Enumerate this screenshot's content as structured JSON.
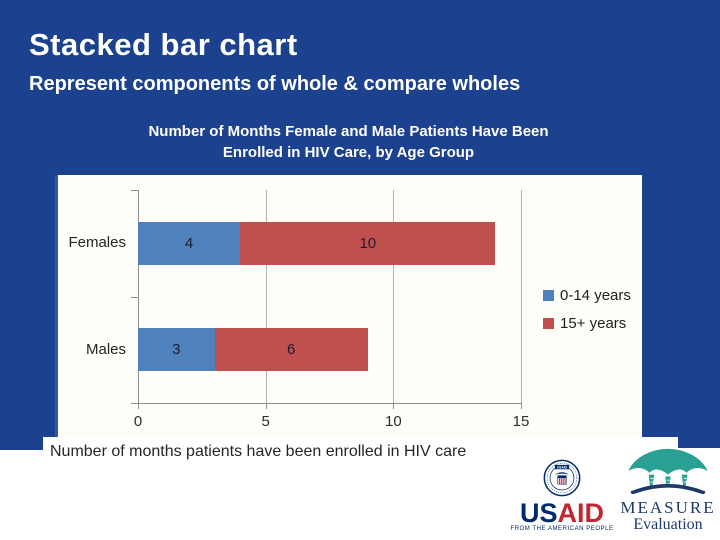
{
  "header": {
    "title": "Stacked bar chart",
    "subtitle": "Represent components of whole & compare wholes"
  },
  "chart_data": {
    "type": "bar",
    "orientation": "horizontal",
    "stacked": true,
    "title_lines": [
      "Number of Months Female and Male Patients Have Been",
      "Enrolled in HIV Care, by Age Group"
    ],
    "categories": [
      "Females",
      "Males"
    ],
    "series": [
      {
        "name": "0-14 years",
        "color": "#4f81bd",
        "values": [
          4,
          3
        ]
      },
      {
        "name": "15+ years",
        "color": "#c0504d",
        "values": [
          10,
          6
        ]
      }
    ],
    "xlabel": "Number of months patients have been enrolled in HIV care",
    "x_ticks": [
      0,
      5,
      10,
      15
    ],
    "xlim": [
      0,
      15
    ],
    "grid": true,
    "legend_position": "right"
  },
  "colors": {
    "slide_blue": "#1c418e",
    "bar_blue": "#4f81bd",
    "bar_red": "#c0504d",
    "usaid_navy": "#002a6c",
    "usaid_red": "#c1272d",
    "measure_teal": "#2a9f93",
    "measure_navy": "#1e3a68"
  },
  "logos": {
    "usaid": {
      "word_us": "US",
      "word_aid": "AID",
      "tagline": "FROM THE AMERICAN PEOPLE",
      "seal_text": "USAID"
    },
    "measure": {
      "line1": "MEASURE",
      "line2": "Evaluation"
    }
  }
}
